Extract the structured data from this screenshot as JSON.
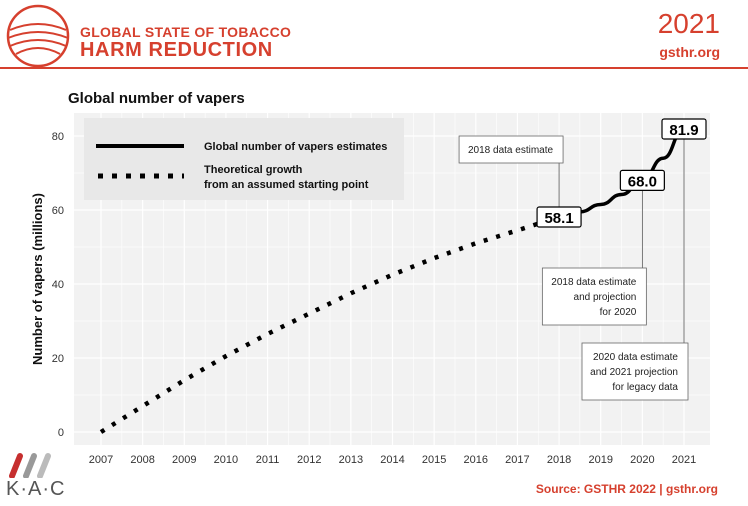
{
  "header": {
    "title_line1": "GLOBAL STATE OF TOBACCO",
    "title_line2": "HARM REDUCTION",
    "year": "2021",
    "site": "gsthr.org"
  },
  "footer": {
    "logo_text": "K·A·C",
    "source": "Source: GSTHR 2022 | gsthr.org"
  },
  "colors": {
    "brand_red": "#d6402e",
    "plot_bg": "#f2f2f2",
    "line": "#000000"
  },
  "chart_data": {
    "type": "line",
    "title": "Global number of vapers",
    "xlabel": "",
    "ylabel": "Number of vapers (millions)",
    "xlim": [
      2007,
      2021
    ],
    "ylim": [
      0,
      80
    ],
    "x_ticks": [
      2007,
      2008,
      2009,
      2010,
      2011,
      2012,
      2013,
      2014,
      2015,
      2016,
      2017,
      2018,
      2019,
      2020,
      2021
    ],
    "y_ticks": [
      0,
      20,
      40,
      60,
      80
    ],
    "grid": true,
    "legend_position": "top-left",
    "series": [
      {
        "name": "Global number of vapers estimates",
        "style": "solid",
        "x": [
          2018,
          2018.5,
          2019,
          2019.5,
          2020,
          2020.5,
          2021
        ],
        "y": [
          58.1,
          59.5,
          61.5,
          64.2,
          68.0,
          74.0,
          81.9
        ]
      },
      {
        "name": "Theoretical growth from an assumed starting point",
        "legend_lines": [
          "Theoretical growth",
          "from an assumed starting point"
        ],
        "style": "dotted",
        "x": [
          2007,
          2008,
          2009,
          2010,
          2011,
          2012,
          2013,
          2014,
          2015,
          2016,
          2017,
          2018
        ],
        "y": [
          0,
          7,
          14,
          20.5,
          26.5,
          32,
          37.5,
          42.5,
          47,
          51,
          54.5,
          58.1
        ]
      }
    ],
    "point_labels": [
      {
        "x": 2018,
        "y": 58.1,
        "text": "58.1"
      },
      {
        "x": 2020,
        "y": 68.0,
        "text": "68.0"
      },
      {
        "x": 2021,
        "y": 81.9,
        "text": "81.9"
      }
    ],
    "annotations": [
      {
        "x": 2018,
        "lines": [
          "2018 data estimate"
        ]
      },
      {
        "x": 2020,
        "lines": [
          "2018 data estimate",
          "and projection",
          "for 2020"
        ]
      },
      {
        "x": 2021,
        "lines": [
          "2020 data estimate",
          "and 2021 projection",
          "for legacy data"
        ]
      }
    ]
  }
}
